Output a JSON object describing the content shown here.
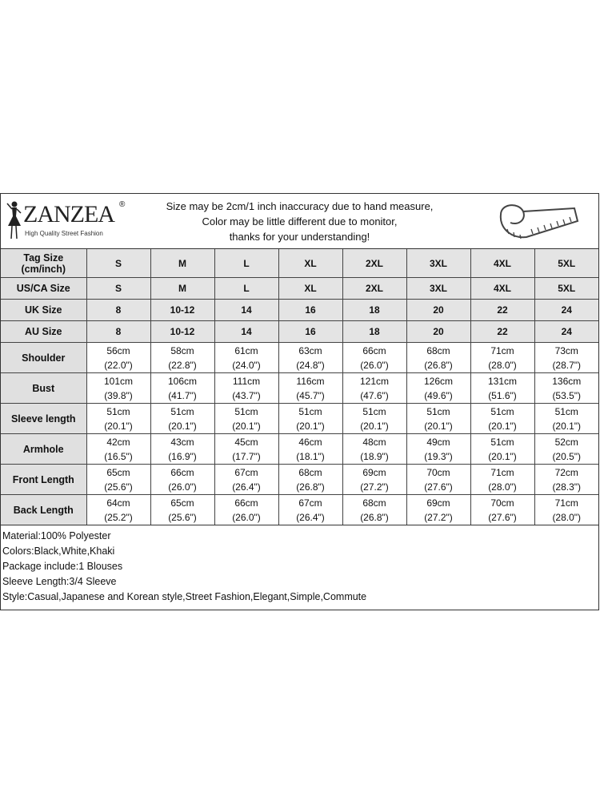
{
  "header": {
    "logo_text": "ZANZEA",
    "logo_tagline": "High Quality Street Fashion",
    "notice": [
      "Size may be 2cm/1 inch inaccuracy due to hand measure,",
      "Color may be little different due to monitor,",
      "thanks for your understanding!"
    ],
    "tape_icon": "measuring-tape-icon"
  },
  "size_rows": [
    {
      "label": "Tag Size (cm/inch)",
      "values": [
        "S",
        "M",
        "L",
        "XL",
        "2XL",
        "3XL",
        "4XL",
        "5XL"
      ]
    },
    {
      "label": "US/CA Size",
      "values": [
        "S",
        "M",
        "L",
        "XL",
        "2XL",
        "3XL",
        "4XL",
        "5XL"
      ]
    },
    {
      "label": "UK Size",
      "values": [
        "8",
        "10-12",
        "14",
        "16",
        "18",
        "20",
        "22",
        "24"
      ]
    },
    {
      "label": "AU Size",
      "values": [
        "8",
        "10-12",
        "14",
        "16",
        "18",
        "20",
        "22",
        "24"
      ]
    }
  ],
  "measurement_rows": [
    {
      "label": "Shoulder",
      "cm": [
        "56cm",
        "58cm",
        "61cm",
        "63cm",
        "66cm",
        "68cm",
        "71cm",
        "73cm"
      ],
      "inch": [
        "(22.0\")",
        "(22.8\")",
        "(24.0\")",
        "(24.8\")",
        "(26.0\")",
        "(26.8\")",
        "(28.0\")",
        "(28.7\")"
      ]
    },
    {
      "label": "Bust",
      "cm": [
        "101cm",
        "106cm",
        "111cm",
        "116cm",
        "121cm",
        "126cm",
        "131cm",
        "136cm"
      ],
      "inch": [
        "(39.8\")",
        "(41.7\")",
        "(43.7\")",
        "(45.7\")",
        "(47.6\")",
        "(49.6\")",
        "(51.6\")",
        "(53.5\")"
      ]
    },
    {
      "label": "Sleeve length",
      "cm": [
        "51cm",
        "51cm",
        "51cm",
        "51cm",
        "51cm",
        "51cm",
        "51cm",
        "51cm"
      ],
      "inch": [
        "(20.1\")",
        "(20.1\")",
        "(20.1\")",
        "(20.1\")",
        "(20.1\")",
        "(20.1\")",
        "(20.1\")",
        "(20.1\")"
      ]
    },
    {
      "label": "Armhole",
      "cm": [
        "42cm",
        "43cm",
        "45cm",
        "46cm",
        "48cm",
        "49cm",
        "51cm",
        "52cm"
      ],
      "inch": [
        "(16.5\")",
        "(16.9\")",
        "(17.7\")",
        "(18.1\")",
        "(18.9\")",
        "(19.3\")",
        "(20.1\")",
        "(20.5\")"
      ]
    },
    {
      "label": "Front Length",
      "cm": [
        "65cm",
        "66cm",
        "67cm",
        "68cm",
        "69cm",
        "70cm",
        "71cm",
        "72cm"
      ],
      "inch": [
        "(25.6\")",
        "(26.0\")",
        "(26.4\")",
        "(26.8\")",
        "(27.2\")",
        "(27.6\")",
        "(28.0\")",
        "(28.3\")"
      ]
    },
    {
      "label": "Back Length",
      "cm": [
        "64cm",
        "65cm",
        "66cm",
        "67cm",
        "68cm",
        "69cm",
        "70cm",
        "71cm"
      ],
      "inch": [
        "(25.2\")",
        "(25.6\")",
        "(26.0\")",
        "(26.4\")",
        "(26.8\")",
        "(27.2\")",
        "(27.6\")",
        "(28.0\")"
      ]
    }
  ],
  "notes": [
    "Material:100% Polyester",
    "Colors:Black,White,Khaki",
    "Package include:1 Blouses",
    "Sleeve Length:3/4 Sleeve",
    "Style:Casual,Japanese and Korean style,Street Fashion,Elegant,Simple,Commute"
  ]
}
